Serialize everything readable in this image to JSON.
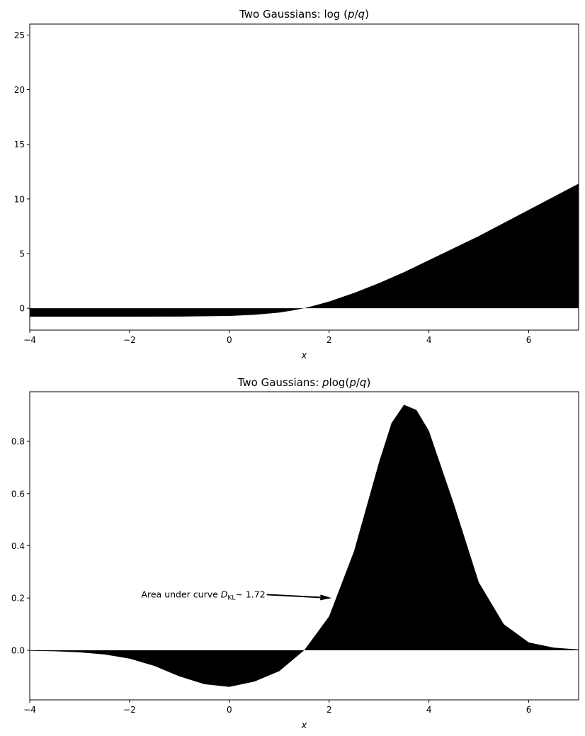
{
  "chart_data": [
    {
      "type": "area",
      "title": "Two Gaussians: log (p/q)",
      "title_parts": {
        "prefix": "Two Gaussians: ",
        "fn": "log",
        "open": " (",
        "p": "p",
        "slash": "/",
        "q": "q",
        "close": ")"
      },
      "xlabel": "x",
      "ylabel": "",
      "xlim": [
        -4,
        7
      ],
      "ylim": [
        -2,
        26
      ],
      "xticks": [
        -4,
        -2,
        0,
        2,
        4,
        6
      ],
      "xtick_labels": [
        "−4",
        "−2",
        "0",
        "2",
        "4",
        "6"
      ],
      "yticks": [
        0,
        5,
        10,
        15,
        20,
        25
      ],
      "ytick_labels": [
        "0",
        "5",
        "10",
        "15",
        "20",
        "25"
      ],
      "grid": false,
      "fill_color": "#000000",
      "series": [
        {
          "x": [
            -4,
            -3,
            -2,
            -1,
            0,
            0.5,
            1,
            1.25,
            1.5,
            1.75,
            2,
            2.5,
            3,
            3.5,
            4,
            4.5,
            5,
            5.5,
            6,
            6.5,
            7
          ],
          "values": [
            -0.77,
            -0.77,
            -0.77,
            -0.76,
            -0.7,
            -0.6,
            -0.4,
            -0.22,
            0.0,
            0.3,
            0.62,
            1.4,
            2.3,
            3.3,
            4.4,
            5.5,
            6.6,
            7.8,
            9.0,
            10.2,
            11.4
          ]
        }
      ]
    },
    {
      "type": "area",
      "title": "Two Gaussians: plog(p/q)",
      "title_parts": {
        "prefix": "Two Gaussians: ",
        "p": "p",
        "fn": "log",
        "open": "(",
        "p2": "p",
        "slash": "/",
        "q": "q",
        "close": ")"
      },
      "xlabel": "x",
      "ylabel": "",
      "xlim": [
        -4,
        7
      ],
      "ylim": [
        -0.19,
        0.99
      ],
      "xticks": [
        -4,
        -2,
        0,
        2,
        4,
        6
      ],
      "xtick_labels": [
        "−4",
        "−2",
        "0",
        "2",
        "4",
        "6"
      ],
      "yticks": [
        0.0,
        0.2,
        0.4,
        0.6,
        0.8
      ],
      "ytick_labels": [
        "0.0",
        "0.2",
        "0.4",
        "0.6",
        "0.8"
      ],
      "grid": false,
      "fill_color": "#000000",
      "series": [
        {
          "x": [
            -4,
            -3.5,
            -3,
            -2.5,
            -2,
            -1.5,
            -1,
            -0.5,
            0,
            0.5,
            1,
            1.5,
            2,
            2.5,
            3,
            3.25,
            3.5,
            3.75,
            4,
            4.5,
            5,
            5.5,
            6,
            6.5,
            7
          ],
          "values": [
            -0.002,
            -0.004,
            -0.008,
            -0.016,
            -0.032,
            -0.06,
            -0.1,
            -0.13,
            -0.14,
            -0.12,
            -0.08,
            0.0,
            0.13,
            0.38,
            0.72,
            0.87,
            0.94,
            0.92,
            0.84,
            0.56,
            0.26,
            0.1,
            0.03,
            0.01,
            0.003
          ]
        }
      ],
      "annotation": {
        "text_prefix": "Area under curve ",
        "symbol": "D",
        "subscript": "KL",
        "relation": "∼",
        "value": "1.72",
        "arrow_from": [
          0.75,
          0.213
        ],
        "arrow_to": [
          2.05,
          0.2
        ]
      }
    }
  ]
}
